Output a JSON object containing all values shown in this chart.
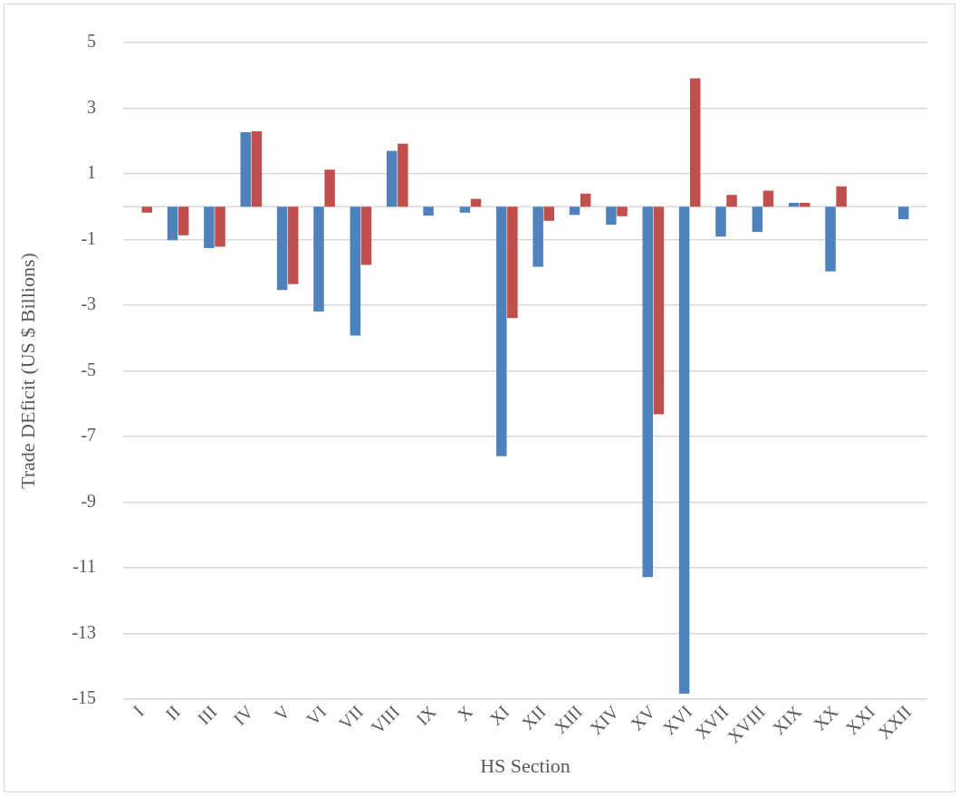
{
  "chart_data": {
    "type": "bar",
    "xlabel": "HS Section",
    "ylabel": "Trade DEficit (US $ Billions)",
    "categories": [
      "I",
      "II",
      "III",
      "IV",
      "V",
      "VI",
      "VII",
      "VIII",
      "IX",
      "X",
      "XI",
      "XII",
      "XIII",
      "XIV",
      "XV",
      "XVI",
      "XVII",
      "XVIII",
      "XIX",
      "XX",
      "XXI",
      "XXII"
    ],
    "series": [
      {
        "color": "#4f81bd",
        "values": [
          null,
          -1.02,
          -1.26,
          2.27,
          -2.54,
          -3.19,
          -3.92,
          1.7,
          -0.27,
          -0.18,
          -7.6,
          -1.83,
          -0.25,
          -0.55,
          -11.28,
          -14.83,
          -0.91,
          -0.77,
          0.12,
          -1.97,
          null,
          -0.38
        ]
      },
      {
        "color": "#c0504d",
        "values": [
          -0.18,
          -0.87,
          -1.22,
          2.3,
          -2.36,
          1.13,
          -1.77,
          1.92,
          null,
          0.24,
          -3.39,
          -0.43,
          0.4,
          -0.29,
          -6.32,
          3.91,
          0.36,
          0.49,
          0.12,
          0.62,
          null,
          null
        ]
      }
    ],
    "ylim": [
      -15,
      5
    ],
    "yticks": [
      -15,
      -13,
      -11,
      -9,
      -7,
      -5,
      -3,
      -1,
      1,
      3,
      5
    ],
    "grid": "y",
    "legend": false
  }
}
